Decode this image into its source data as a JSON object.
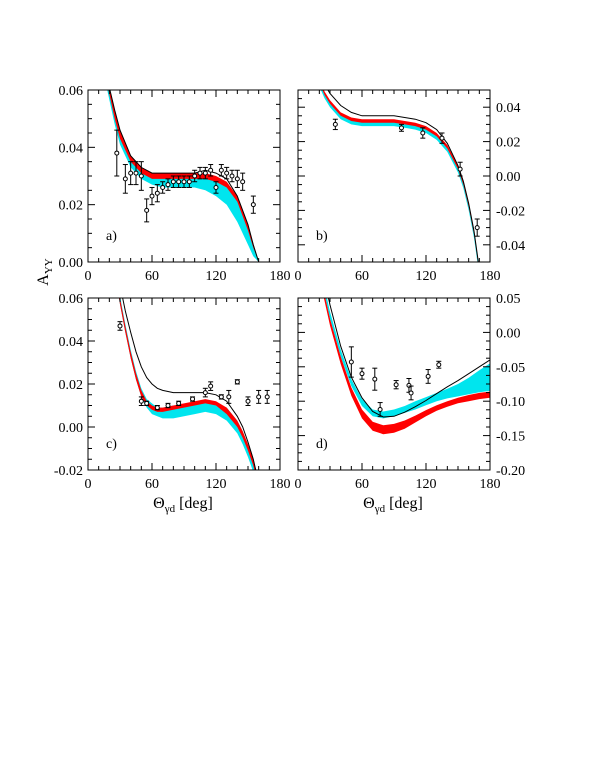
{
  "figure": {
    "ylabel_main": "A",
    "ylabel_sub": "YY",
    "xlabel_main": "Θ",
    "xlabel_sub": "γd",
    "xlabel_unit": " [deg]",
    "colors": {
      "red_band": "#ff0000",
      "cyan_band": "#00e5ee",
      "line": "#000000",
      "data": "#000000"
    }
  },
  "chart_data": [
    {
      "panel": "a)",
      "type": "line",
      "xlim": [
        0,
        180
      ],
      "ylim": [
        0,
        0.06
      ],
      "x_ticks": [
        "0",
        "60",
        "120",
        "180"
      ],
      "y_ticks": [
        "0.00",
        "0.02",
        "0.04",
        "0.06"
      ],
      "y_axis_side": "left",
      "show_x_ticklabels": true,
      "series": [
        {
          "kind": "cyan_band",
          "x": [
            18,
            25,
            30,
            40,
            50,
            60,
            70,
            80,
            90,
            100,
            110,
            120,
            130,
            140,
            150,
            155,
            160
          ],
          "upper": [
            0.064,
            0.052,
            0.045,
            0.036,
            0.032,
            0.03,
            0.03,
            0.03,
            0.03,
            0.03,
            0.03,
            0.029,
            0.027,
            0.022,
            0.012,
            0.006,
            0.0
          ],
          "lower": [
            0.06,
            0.048,
            0.041,
            0.033,
            0.029,
            0.027,
            0.026,
            0.026,
            0.026,
            0.026,
            0.025,
            0.023,
            0.02,
            0.014,
            0.006,
            0.002,
            0.0
          ]
        },
        {
          "kind": "red_band",
          "x": [
            18,
            25,
            30,
            40,
            50,
            60,
            70,
            80,
            90,
            100,
            110,
            120,
            130,
            140,
            150,
            155,
            160
          ],
          "upper": [
            0.064,
            0.053,
            0.046,
            0.037,
            0.033,
            0.031,
            0.031,
            0.031,
            0.031,
            0.031,
            0.031,
            0.03,
            0.028,
            0.023,
            0.013,
            0.006,
            0.0
          ],
          "lower": [
            0.062,
            0.05,
            0.043,
            0.035,
            0.031,
            0.029,
            0.029,
            0.029,
            0.029,
            0.029,
            0.029,
            0.028,
            0.026,
            0.021,
            0.011,
            0.005,
            0.0
          ]
        },
        {
          "kind": "line",
          "x": [
            18,
            25,
            30,
            40,
            50,
            60,
            70,
            80,
            90,
            100,
            110,
            120,
            130,
            140,
            150,
            155,
            160
          ],
          "y": [
            0.064,
            0.053,
            0.046,
            0.037,
            0.033,
            0.031,
            0.031,
            0.031,
            0.031,
            0.031,
            0.032,
            0.031,
            0.029,
            0.023,
            0.013,
            0.006,
            0.0
          ]
        },
        {
          "kind": "points",
          "x": [
            27,
            35,
            40,
            45,
            50,
            55,
            60,
            65,
            70,
            75,
            80,
            85,
            90,
            95,
            100,
            105,
            110,
            115,
            120,
            125,
            130,
            135,
            140,
            145,
            155
          ],
          "y": [
            0.038,
            0.029,
            0.031,
            0.031,
            0.03,
            0.018,
            0.023,
            0.024,
            0.026,
            0.027,
            0.028,
            0.028,
            0.028,
            0.028,
            0.03,
            0.031,
            0.031,
            0.032,
            0.026,
            0.032,
            0.031,
            0.03,
            0.029,
            0.028,
            0.02
          ],
          "err": [
            0.008,
            0.005,
            0.004,
            0.004,
            0.005,
            0.004,
            0.003,
            0.003,
            0.002,
            0.002,
            0.002,
            0.002,
            0.002,
            0.002,
            0.002,
            0.002,
            0.002,
            0.002,
            0.002,
            0.002,
            0.002,
            0.002,
            0.003,
            0.003,
            0.003
          ]
        }
      ]
    },
    {
      "panel": "b)",
      "type": "line",
      "xlim": [
        0,
        180
      ],
      "ylim": [
        -0.05,
        0.05
      ],
      "x_ticks": [
        "0",
        "60",
        "120",
        "180"
      ],
      "y_ticks": [
        "-0.04",
        "-0.02",
        "0.00",
        "0.02",
        "0.04"
      ],
      "y_axis_side": "right",
      "show_x_ticklabels": true,
      "series": [
        {
          "kind": "cyan_band",
          "x": [
            20,
            25,
            30,
            40,
            50,
            60,
            70,
            80,
            90,
            100,
            110,
            120,
            130,
            140,
            150,
            155,
            160,
            165,
            170
          ],
          "upper": [
            0.055,
            0.048,
            0.043,
            0.036,
            0.033,
            0.032,
            0.032,
            0.032,
            0.032,
            0.031,
            0.03,
            0.028,
            0.024,
            0.017,
            0.005,
            -0.004,
            -0.017,
            -0.033,
            -0.055
          ],
          "lower": [
            0.052,
            0.045,
            0.04,
            0.033,
            0.03,
            0.029,
            0.029,
            0.029,
            0.029,
            0.028,
            0.027,
            0.025,
            0.021,
            0.014,
            0.002,
            -0.007,
            -0.02,
            -0.036,
            -0.058
          ]
        },
        {
          "kind": "red_band",
          "x": [
            20,
            25,
            30,
            40,
            50,
            60,
            70,
            80,
            90,
            100,
            110,
            120,
            130,
            140,
            150,
            155,
            160,
            165,
            170
          ],
          "upper": [
            0.056,
            0.049,
            0.044,
            0.037,
            0.034,
            0.033,
            0.033,
            0.033,
            0.033,
            0.032,
            0.031,
            0.029,
            0.025,
            0.018,
            0.006,
            -0.003,
            -0.016,
            -0.032,
            -0.054
          ],
          "lower": [
            0.054,
            0.047,
            0.042,
            0.035,
            0.032,
            0.031,
            0.031,
            0.031,
            0.031,
            0.03,
            0.029,
            0.027,
            0.023,
            0.016,
            0.004,
            -0.005,
            -0.018,
            -0.034,
            -0.056
          ]
        },
        {
          "kind": "line",
          "x": [
            20,
            25,
            30,
            40,
            50,
            60,
            70,
            80,
            90,
            100,
            110,
            120,
            130,
            140,
            150,
            155,
            160,
            165,
            170
          ],
          "y": [
            0.06,
            0.053,
            0.048,
            0.041,
            0.037,
            0.035,
            0.035,
            0.035,
            0.035,
            0.034,
            0.033,
            0.031,
            0.027,
            0.019,
            0.006,
            -0.003,
            -0.016,
            -0.032,
            -0.054
          ]
        },
        {
          "kind": "points",
          "x": [
            35,
            97,
            117,
            135,
            152,
            168
          ],
          "y": [
            0.03,
            0.028,
            0.025,
            0.022,
            0.004,
            -0.03
          ],
          "err": [
            0.003,
            0.002,
            0.003,
            0.003,
            0.004,
            0.005
          ]
        }
      ]
    },
    {
      "panel": "c)",
      "type": "line",
      "xlim": [
        0,
        180
      ],
      "ylim": [
        -0.02,
        0.06
      ],
      "x_ticks": [
        "0",
        "60",
        "120",
        "180"
      ],
      "y_ticks": [
        "-0.02",
        "0.00",
        "0.02",
        "0.04",
        "0.06"
      ],
      "y_axis_side": "left",
      "show_x_ticklabels": true,
      "series": [
        {
          "kind": "cyan_band",
          "x": [
            25,
            30,
            35,
            40,
            45,
            50,
            55,
            60,
            65,
            70,
            80,
            90,
            100,
            110,
            120,
            130,
            140,
            145,
            150,
            155,
            160
          ],
          "upper": [
            0.075,
            0.061,
            0.048,
            0.036,
            0.026,
            0.018,
            0.013,
            0.011,
            0.009,
            0.009,
            0.01,
            0.01,
            0.011,
            0.012,
            0.011,
            0.009,
            0.003,
            -0.002,
            -0.008,
            -0.015,
            -0.025
          ],
          "lower": [
            0.071,
            0.057,
            0.044,
            0.032,
            0.022,
            0.014,
            0.009,
            0.006,
            0.005,
            0.004,
            0.004,
            0.005,
            0.006,
            0.007,
            0.006,
            0.003,
            -0.003,
            -0.008,
            -0.014,
            -0.021,
            -0.031
          ]
        },
        {
          "kind": "red_band",
          "x": [
            25,
            30,
            35,
            40,
            45,
            50,
            55,
            60,
            65,
            70,
            80,
            90,
            100,
            110,
            120,
            130,
            140,
            145,
            150,
            155,
            160
          ],
          "upper": [
            0.074,
            0.06,
            0.047,
            0.035,
            0.025,
            0.017,
            0.012,
            0.01,
            0.009,
            0.009,
            0.01,
            0.011,
            0.012,
            0.013,
            0.012,
            0.009,
            0.003,
            -0.002,
            -0.008,
            -0.015,
            -0.025
          ],
          "lower": [
            0.072,
            0.057,
            0.044,
            0.032,
            0.022,
            0.014,
            0.01,
            0.008,
            0.007,
            0.007,
            0.008,
            0.009,
            0.01,
            0.011,
            0.01,
            0.006,
            0.0,
            -0.005,
            -0.011,
            -0.018,
            -0.028
          ]
        },
        {
          "kind": "line",
          "x": [
            25,
            30,
            35,
            40,
            45,
            50,
            55,
            60,
            65,
            70,
            80,
            90,
            100,
            110,
            120,
            130,
            140,
            145,
            150,
            155,
            160
          ],
          "y": [
            0.078,
            0.066,
            0.054,
            0.044,
            0.035,
            0.028,
            0.023,
            0.02,
            0.018,
            0.017,
            0.016,
            0.016,
            0.016,
            0.016,
            0.015,
            0.012,
            0.005,
            0.0,
            -0.007,
            -0.015,
            -0.026
          ]
        },
        {
          "kind": "points",
          "x": [
            30,
            50,
            55,
            65,
            75,
            85,
            98,
            110,
            115,
            125,
            132,
            140,
            150,
            160,
            168
          ],
          "y": [
            0.047,
            0.012,
            0.011,
            0.009,
            0.01,
            0.011,
            0.013,
            0.016,
            0.019,
            0.014,
            0.014,
            0.021,
            0.012,
            0.014,
            0.014
          ],
          "err": [
            0.002,
            0.002,
            0.001,
            0.001,
            0.001,
            0.001,
            0.001,
            0.002,
            0.002,
            0.001,
            0.003,
            0.001,
            0.002,
            0.003,
            0.003
          ]
        }
      ]
    },
    {
      "panel": "d)",
      "type": "line",
      "xlim": [
        0,
        180
      ],
      "ylim": [
        -0.2,
        0.05
      ],
      "x_ticks": [
        "0",
        "60",
        "120",
        "180"
      ],
      "y_ticks": [
        "-0.20",
        "-0.15",
        "-0.10",
        "-0.05",
        "0.00",
        "0.05"
      ],
      "y_axis_side": "right",
      "show_x_ticklabels": true,
      "series": [
        {
          "kind": "cyan_band",
          "x": [
            20,
            30,
            40,
            50,
            60,
            70,
            80,
            90,
            100,
            110,
            120,
            130,
            140,
            150,
            160,
            170,
            180
          ],
          "upper": [
            0.1,
            0.03,
            -0.025,
            -0.068,
            -0.097,
            -0.112,
            -0.115,
            -0.112,
            -0.107,
            -0.1,
            -0.094,
            -0.088,
            -0.082,
            -0.075,
            -0.066,
            -0.055,
            -0.045
          ],
          "lower": [
            0.09,
            0.02,
            -0.035,
            -0.078,
            -0.107,
            -0.122,
            -0.125,
            -0.122,
            -0.117,
            -0.112,
            -0.106,
            -0.1,
            -0.096,
            -0.093,
            -0.09,
            -0.087,
            -0.085
          ]
        },
        {
          "kind": "red_band",
          "x": [
            20,
            30,
            40,
            50,
            60,
            70,
            80,
            90,
            100,
            110,
            120,
            130,
            140,
            150,
            160,
            170,
            180
          ],
          "upper": [
            0.09,
            0.02,
            -0.035,
            -0.08,
            -0.112,
            -0.13,
            -0.135,
            -0.133,
            -0.128,
            -0.121,
            -0.113,
            -0.106,
            -0.1,
            -0.095,
            -0.091,
            -0.088,
            -0.086
          ],
          "lower": [
            0.08,
            0.01,
            -0.046,
            -0.092,
            -0.125,
            -0.143,
            -0.148,
            -0.146,
            -0.14,
            -0.131,
            -0.122,
            -0.114,
            -0.108,
            -0.103,
            -0.1,
            -0.097,
            -0.095
          ]
        },
        {
          "kind": "line",
          "x": [
            20,
            30,
            40,
            50,
            60,
            70,
            80,
            90,
            100,
            110,
            120,
            130,
            140,
            150,
            160,
            170,
            180
          ],
          "y": [
            0.11,
            0.04,
            -0.02,
            -0.065,
            -0.095,
            -0.115,
            -0.123,
            -0.122,
            -0.116,
            -0.108,
            -0.099,
            -0.089,
            -0.079,
            -0.07,
            -0.06,
            -0.05,
            -0.04
          ]
        },
        {
          "kind": "points",
          "x": [
            50,
            60,
            72,
            77,
            92,
            104,
            106,
            122,
            132
          ],
          "y": [
            -0.043,
            -0.06,
            -0.068,
            -0.112,
            -0.076,
            -0.077,
            -0.088,
            -0.064,
            -0.047
          ],
          "err": [
            0.022,
            0.008,
            0.016,
            0.01,
            0.006,
            0.01,
            0.01,
            0.01,
            0.005
          ]
        }
      ]
    }
  ]
}
